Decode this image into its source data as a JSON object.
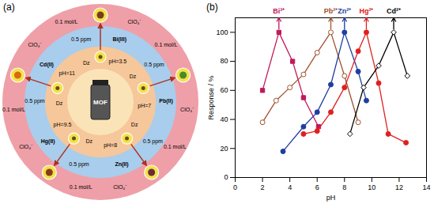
{
  "chart_data": {
    "type": "line",
    "panel_label": "(b)",
    "x_label": "pH",
    "y_label": "Response / %",
    "xlim": [
      0,
      14
    ],
    "xticks": [
      0,
      2,
      4,
      6,
      8,
      10,
      12,
      14
    ],
    "ylim": [
      0,
      110
    ],
    "yticks": [
      0,
      20,
      40,
      60,
      80,
      100
    ],
    "grid": false,
    "series": [
      {
        "name": "Bi³⁺",
        "color": "#c2185b",
        "marker": "square",
        "x": [
          2,
          3.2,
          4.2,
          5,
          6.1
        ],
        "values": [
          60,
          100,
          80,
          55,
          35
        ]
      },
      {
        "name": "Pb²⁺",
        "color": "#a0522d",
        "marker": "circle-open",
        "x": [
          2,
          3,
          4,
          5,
          6,
          7,
          8,
          9
        ],
        "values": [
          38,
          53,
          62,
          71,
          86,
          100,
          70,
          38
        ]
      },
      {
        "name": "Zn²⁺",
        "color": "#1f3fa0",
        "marker": "circle",
        "x": [
          3.5,
          5,
          6,
          7,
          8,
          9,
          9.6
        ],
        "values": [
          18,
          35,
          45,
          64,
          100,
          73,
          53
        ]
      },
      {
        "name": "Hg²⁺",
        "color": "#e02020",
        "marker": "circle",
        "x": [
          5,
          6,
          7,
          8,
          9,
          9.6,
          10.5,
          11.2,
          12.5
        ],
        "values": [
          30,
          32,
          45,
          62,
          87,
          100,
          65,
          30,
          24
        ]
      },
      {
        "name": "Cd²⁺",
        "color": "#000000",
        "marker": "diamond-open",
        "x": [
          8.4,
          9.4,
          10.5,
          11.6,
          12.6
        ],
        "values": [
          30,
          62,
          77,
          100,
          70
        ]
      }
    ]
  },
  "diagram": {
    "label": "(a)",
    "center": "MOF",
    "nodes": [
      {
        "metal": "Bi(III)",
        "conc": "0.5 ppm",
        "reagent": "Dz",
        "ph": "pH=3.5",
        "masking": "ClO₄⁻",
        "masking_conc": "0.1 mol/L"
      },
      {
        "metal": "Pb(II)",
        "conc": "0.5 ppm",
        "reagent": "Dz",
        "ph": "pH=7",
        "masking": "ClO₄⁻",
        "masking_conc": "0.1 mol/L"
      },
      {
        "metal": "Zn(II)",
        "conc": "0.5 ppm",
        "reagent": "Dz",
        "ph": "pH=8",
        "masking": "ClO₄⁻",
        "masking_conc": "0.1 mol/L"
      },
      {
        "metal": "Hg(II)",
        "conc": "0.5 ppm",
        "reagent": "Dz",
        "ph": "pH=9.5",
        "masking": "ClO₄⁻",
        "masking_conc": "0.1 mol/L"
      },
      {
        "metal": "Cd(II)",
        "conc": "0.5 ppm",
        "reagent": "Dz",
        "ph": "pH=11",
        "masking": "ClO₄⁻",
        "masking_conc": "0.1 mol/L"
      }
    ]
  }
}
